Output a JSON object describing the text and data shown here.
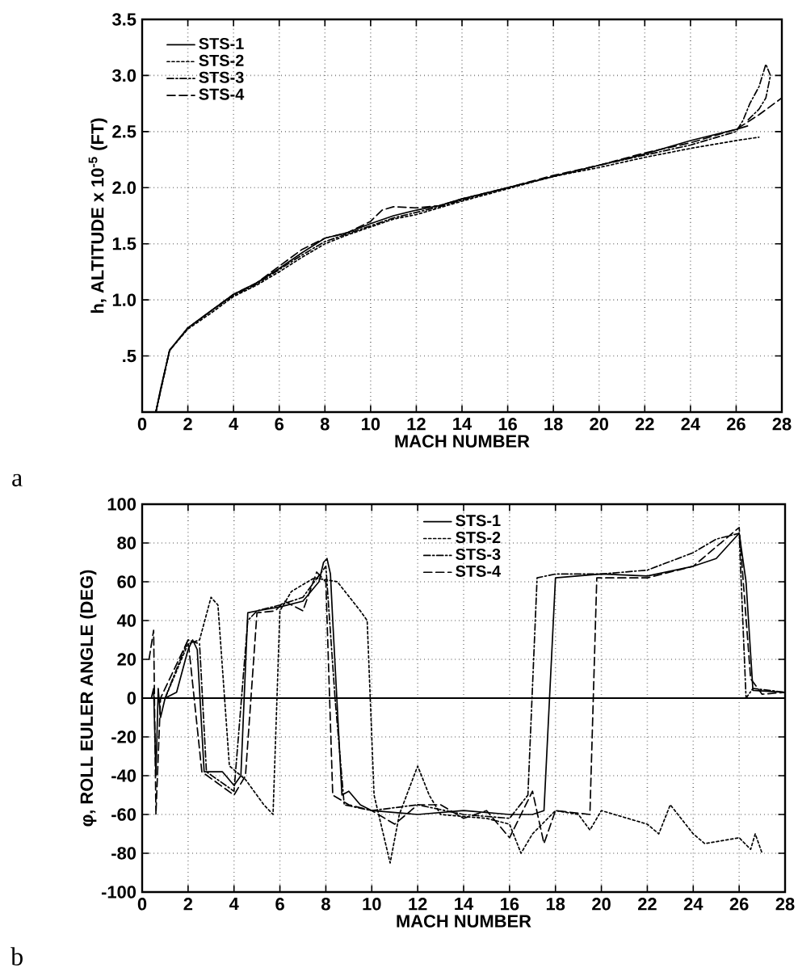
{
  "chart_data": [
    {
      "type": "line",
      "xlabel": "MACH NUMBER",
      "ylabel": "h, ALTITUDE x 10$^{-5}$ (FT)",
      "annotations": [
        "a"
      ],
      "xlim": [
        0,
        28
      ],
      "ylim": [
        0,
        3.5
      ],
      "xticks": [
        0,
        2,
        4,
        6,
        8,
        10,
        12,
        14,
        16,
        18,
        20,
        22,
        24,
        26,
        28
      ],
      "yticks": [
        {
          "value": 0.5,
          "label": ".5"
        },
        {
          "value": 1.0,
          "label": "1.0"
        },
        {
          "value": 1.5,
          "label": "1.5"
        },
        {
          "value": 2.0,
          "label": "2.0"
        },
        {
          "value": 2.5,
          "label": "2.5"
        },
        {
          "value": 3.0,
          "label": "3.0"
        },
        {
          "value": 3.5,
          "label": "3.5"
        }
      ],
      "grid": true,
      "legend": "top left",
      "series": [
        {
          "name": "STS-1",
          "color": "#000000",
          "line_style": "solid",
          "x": [
            0.6,
            0.8,
            1.2,
            2,
            3,
            4,
            5,
            6,
            7,
            8,
            9,
            10,
            11,
            12,
            13,
            14,
            16,
            18,
            20,
            22,
            24,
            26,
            26.5
          ],
          "values": [
            0,
            0.2,
            0.55,
            0.75,
            0.9,
            1.05,
            1.15,
            1.28,
            1.42,
            1.55,
            1.6,
            1.68,
            1.75,
            1.8,
            1.84,
            1.9,
            2.0,
            2.1,
            2.2,
            2.3,
            2.42,
            2.52,
            2.55
          ]
        },
        {
          "name": "STS-2",
          "color": "#000000",
          "line_style": "dotted",
          "x": [
            0.6,
            1.2,
            2,
            3,
            4,
            5,
            6,
            7,
            8,
            9,
            10,
            11,
            12,
            13,
            14,
            16,
            18,
            20,
            22,
            24,
            26,
            27
          ],
          "values": [
            0,
            0.55,
            0.74,
            0.88,
            1.03,
            1.13,
            1.25,
            1.38,
            1.5,
            1.58,
            1.65,
            1.72,
            1.76,
            1.82,
            1.88,
            1.99,
            2.1,
            2.18,
            2.27,
            2.35,
            2.42,
            2.45
          ]
        },
        {
          "name": "STS-3",
          "color": "#000000",
          "line_style": "dashdot",
          "x": [
            0.6,
            1.2,
            2,
            3,
            4,
            5,
            6,
            7,
            8,
            9,
            10,
            11,
            12,
            13,
            14,
            16,
            18,
            20,
            22,
            24,
            26,
            26.3,
            26.6,
            27,
            27.3,
            27.5,
            27.3,
            27,
            26.5
          ],
          "values": [
            0,
            0.55,
            0.75,
            0.9,
            1.04,
            1.14,
            1.27,
            1.4,
            1.52,
            1.59,
            1.66,
            1.73,
            1.78,
            1.83,
            1.89,
            2.0,
            2.1,
            2.2,
            2.29,
            2.38,
            2.5,
            2.6,
            2.75,
            2.9,
            3.1,
            3.0,
            2.8,
            2.7,
            2.6
          ]
        },
        {
          "name": "STS-4",
          "color": "#000000",
          "line_style": "dashed",
          "x": [
            0.6,
            1.2,
            2,
            3,
            4,
            5,
            6,
            7,
            8,
            9,
            10,
            10.5,
            11,
            12,
            13,
            14,
            16,
            18,
            20,
            22,
            24,
            26,
            27,
            28
          ],
          "values": [
            0,
            0.55,
            0.75,
            0.9,
            1.05,
            1.15,
            1.3,
            1.45,
            1.55,
            1.6,
            1.7,
            1.8,
            1.83,
            1.82,
            1.84,
            1.9,
            2.0,
            2.11,
            2.2,
            2.31,
            2.4,
            2.52,
            2.65,
            2.8
          ]
        }
      ]
    },
    {
      "type": "line",
      "xlabel": "MACH NUMBER",
      "ylabel": "φ, ROLL EULER ANGLE (DEG)",
      "annotations": [
        "b"
      ],
      "xlim": [
        0,
        28
      ],
      "ylim": [
        -100,
        100
      ],
      "xticks": [
        0,
        2,
        4,
        6,
        8,
        10,
        12,
        14,
        16,
        18,
        20,
        22,
        24,
        26,
        28
      ],
      "yticks": [
        -100,
        -80,
        -60,
        -40,
        -20,
        0,
        20,
        40,
        60,
        80,
        100
      ],
      "grid": true,
      "legend": "top",
      "ref_lines": [
        {
          "axis": "y",
          "value": 0,
          "color": "#000000",
          "line_style": "solid"
        }
      ],
      "series": [
        {
          "name": "STS-1",
          "color": "#000000",
          "line_style": "solid",
          "x": [
            0.4,
            0.5,
            0.6,
            0.7,
            0.8,
            1,
            1.5,
            2,
            2.2,
            2.4,
            2.7,
            3.5,
            4,
            4.3,
            4.6,
            5,
            6,
            7,
            7.7,
            7.9,
            8.05,
            8.2,
            8.3,
            8.7,
            9,
            9.5,
            10,
            12,
            14,
            16,
            17,
            17.5,
            18,
            20,
            22,
            24,
            25,
            26,
            26.3,
            26.6,
            28
          ],
          "values": [
            0,
            5,
            -40,
            5,
            -10,
            0,
            3,
            25,
            30,
            25,
            -38,
            -38,
            -45,
            -40,
            44,
            45,
            47,
            50,
            60,
            70,
            72,
            64,
            40,
            -50,
            -48,
            -55,
            -58,
            -60,
            -58,
            -60,
            -60,
            -58,
            62,
            64,
            63,
            68,
            72,
            85,
            60,
            4,
            3
          ]
        },
        {
          "name": "STS-2",
          "color": "#000000",
          "line_style": "dotted",
          "x": [
            0.5,
            1,
            2,
            2.5,
            3,
            3.3,
            3.8,
            4.5,
            5.3,
            5.7,
            6,
            6.5,
            7.5,
            8.5,
            9.5,
            9.8,
            10.1,
            10.8,
            11.2,
            12,
            12.5,
            13,
            15,
            16,
            16.5,
            17,
            18,
            19,
            19.5,
            20,
            22,
            22.5,
            23,
            24,
            24.5,
            26,
            26.5,
            26.7,
            27
          ],
          "values": [
            0,
            0,
            28,
            30,
            52,
            48,
            -35,
            -42,
            -55,
            -60,
            45,
            55,
            62,
            60,
            45,
            40,
            -50,
            -85,
            -60,
            -35,
            -50,
            -60,
            -62,
            -65,
            -80,
            -70,
            -58,
            -60,
            -68,
            -58,
            -65,
            -70,
            -55,
            -70,
            -75,
            -72,
            -78,
            -70,
            -80
          ]
        },
        {
          "name": "STS-3",
          "color": "#000000",
          "line_style": "dashdot",
          "x": [
            0.5,
            1,
            2,
            2.5,
            2.8,
            4,
            4.6,
            5,
            6,
            7,
            8,
            8.4,
            8.8,
            10,
            12,
            14,
            16,
            16.8,
            17.2,
            18,
            20,
            22,
            24,
            25,
            26,
            26.3,
            26.6,
            28
          ],
          "values": [
            0,
            0,
            30,
            28,
            -38,
            -48,
            40,
            45,
            48,
            52,
            68,
            0,
            -55,
            -58,
            -55,
            -60,
            -62,
            -50,
            62,
            64,
            64,
            66,
            75,
            82,
            85,
            0,
            5,
            3
          ]
        },
        {
          "name": "STS-4",
          "color": "#000000",
          "line_style": "dashed",
          "x": [
            0.3,
            0.5,
            0.6,
            0.8,
            2,
            2.6,
            4,
            4.5,
            5,
            5.8,
            6.2,
            7,
            7.6,
            8,
            8.3,
            9,
            10,
            11,
            12,
            13,
            14,
            15,
            16,
            17,
            17.5,
            18,
            19.5,
            19.8,
            22,
            24,
            26,
            26.5,
            27,
            28
          ],
          "values": [
            20,
            35,
            -60,
            0,
            30,
            -38,
            -50,
            -40,
            44,
            45,
            50,
            45,
            65,
            60,
            -50,
            -55,
            -58,
            -65,
            -55,
            -55,
            -62,
            -58,
            -72,
            -48,
            -75,
            -58,
            -60,
            62,
            62,
            68,
            88,
            10,
            2,
            3
          ]
        }
      ]
    }
  ]
}
